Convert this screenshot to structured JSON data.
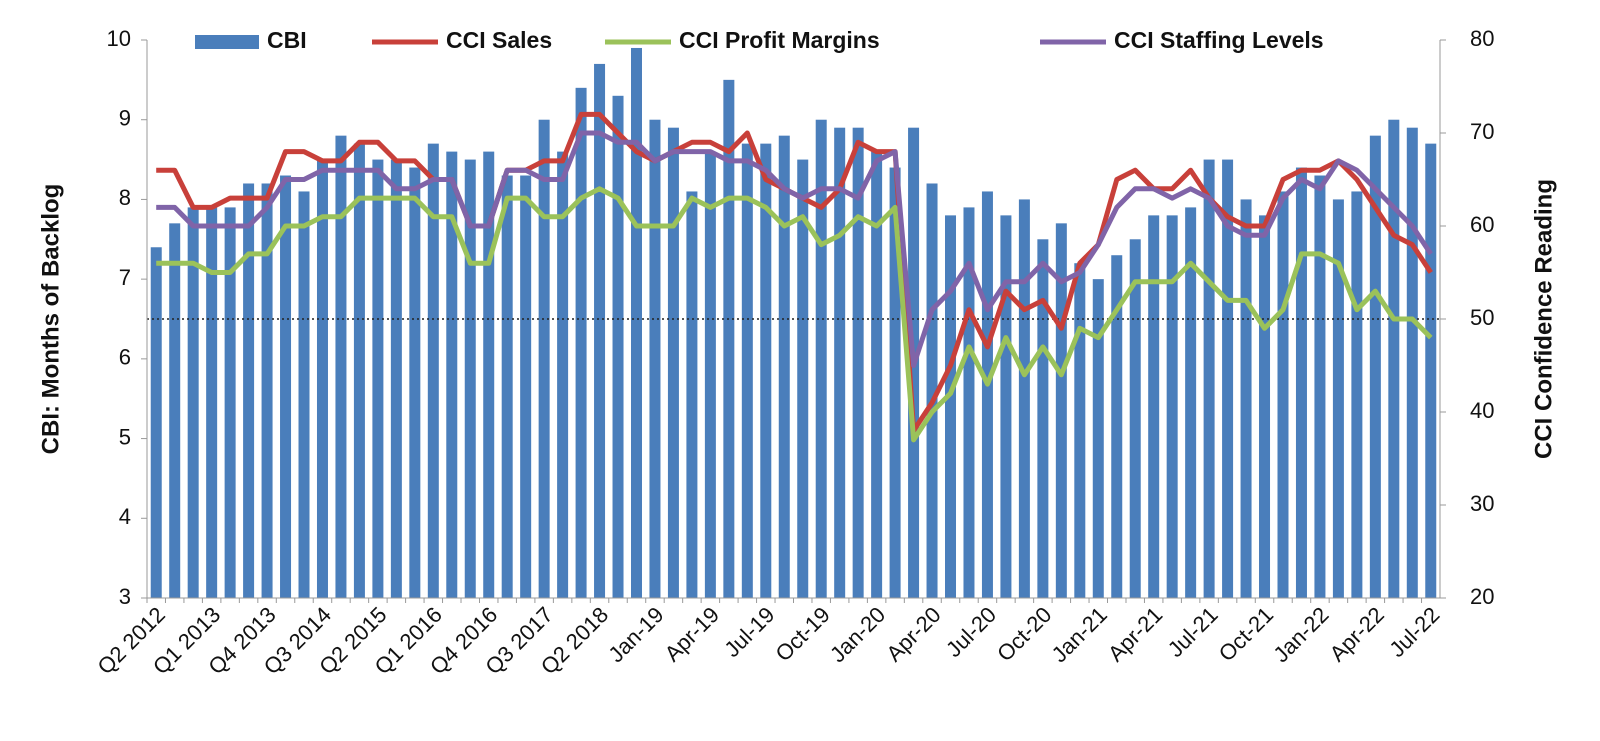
{
  "chart_data": {
    "type": "bar-line",
    "y_label": "CBI: Months of Backlog",
    "y2_label": "CCI Confidence Reading",
    "categories": [
      "Q2 2012",
      null,
      null,
      "Q1 2013",
      null,
      null,
      "Q4 2013",
      null,
      null,
      "Q3 2014",
      null,
      null,
      "Q2 2015",
      null,
      null,
      "Q1 2016",
      null,
      null,
      "Q4 2016",
      null,
      null,
      "Q3 2017",
      null,
      null,
      "Q2 2018",
      null,
      null,
      "Jan-19",
      null,
      null,
      "Apr-19",
      null,
      null,
      "Jul-19",
      null,
      null,
      "Oct-19",
      null,
      null,
      "Jan-20",
      null,
      null,
      "Apr-20",
      null,
      null,
      "Jul-20",
      null,
      null,
      "Oct-20",
      null,
      null,
      "Jan-21",
      null,
      null,
      "Apr-21",
      null,
      null,
      "Jul-21",
      null,
      null,
      "Oct-21",
      null,
      null,
      "Jan-22",
      null,
      null,
      "Apr-22",
      null,
      null,
      "Jul-22"
    ],
    "series": [
      {
        "name": "CBI",
        "kind": "bar",
        "axis": "y",
        "color": "#4a7ebb",
        "values": [
          7.4,
          7.7,
          7.9,
          7.9,
          7.9,
          8.2,
          8.2,
          8.3,
          8.1,
          8.5,
          8.8,
          8.7,
          8.5,
          8.5,
          8.4,
          8.7,
          8.6,
          8.5,
          8.6,
          8.3,
          8.3,
          9.0,
          8.6,
          9.4,
          9.7,
          9.3,
          9.9,
          9.0,
          8.9,
          8.1,
          8.6,
          9.5,
          8.7,
          8.7,
          8.8,
          8.5,
          9.0,
          8.9,
          8.9,
          8.6,
          8.4,
          8.9,
          8.2,
          7.8,
          7.9,
          8.1,
          7.8,
          8.0,
          7.5,
          7.7,
          7.2,
          7.0,
          7.3,
          7.5,
          7.8,
          7.8,
          7.9,
          8.5,
          8.5,
          8.0,
          7.8,
          8.1,
          8.4,
          8.3,
          8.0,
          8.1,
          8.8,
          9.0,
          8.9,
          8.7
        ]
      },
      {
        "name": "CCI Sales",
        "kind": "line",
        "axis": "y2",
        "color": "#c8403a",
        "values": [
          66,
          66,
          62,
          62,
          63,
          63,
          63,
          68,
          68,
          67,
          67,
          69,
          69,
          67,
          67,
          65,
          65,
          60,
          60,
          66,
          66,
          67,
          67,
          72,
          72,
          70,
          68,
          67,
          68,
          69,
          69,
          68,
          70,
          65,
          64,
          63,
          62,
          64,
          69,
          68,
          68,
          38,
          41,
          45,
          51,
          47,
          53,
          51,
          52,
          49,
          56,
          58,
          65,
          66,
          64,
          64,
          66,
          63,
          61,
          60,
          60,
          65,
          66,
          66,
          67,
          65,
          62,
          59,
          58,
          55
        ]
      },
      {
        "name": "CCI Profit Margins",
        "kind": "line",
        "axis": "y2",
        "color": "#9bc25a",
        "values": [
          56,
          56,
          56,
          55,
          55,
          57,
          57,
          60,
          60,
          61,
          61,
          63,
          63,
          63,
          63,
          61,
          61,
          56,
          56,
          63,
          63,
          61,
          61,
          63,
          64,
          63,
          60,
          60,
          60,
          63,
          62,
          63,
          63,
          62,
          60,
          61,
          58,
          59,
          61,
          60,
          62,
          37,
          40,
          42,
          47,
          43,
          48,
          44,
          47,
          44,
          49,
          48,
          51,
          54,
          54,
          54,
          56,
          54,
          52,
          52,
          49,
          51,
          57,
          57,
          56,
          51,
          53,
          50,
          50,
          48
        ]
      },
      {
        "name": "CCI Staffing Levels",
        "kind": "line",
        "axis": "y2",
        "color": "#8064a8",
        "values": [
          62,
          62,
          60,
          60,
          60,
          60,
          62,
          65,
          65,
          66,
          66,
          66,
          66,
          64,
          64,
          65,
          65,
          60,
          60,
          66,
          66,
          65,
          65,
          70,
          70,
          69,
          69,
          67,
          68,
          68,
          68,
          67,
          67,
          66,
          64,
          63,
          64,
          64,
          63,
          67,
          68,
          45,
          51,
          53,
          56,
          51,
          54,
          54,
          56,
          54,
          55,
          58,
          62,
          64,
          64,
          63,
          64,
          63,
          60,
          59,
          59,
          63,
          65,
          64,
          67,
          66,
          64,
          62,
          60,
          57
        ]
      }
    ],
    "ylim": [
      3,
      10
    ],
    "yticks": [
      3,
      4,
      5,
      6,
      7,
      8,
      9,
      10
    ],
    "y2lim": [
      20,
      80
    ],
    "y2ticks": [
      20,
      30,
      40,
      50,
      60,
      70,
      80
    ],
    "y2_reference_line": 50
  }
}
